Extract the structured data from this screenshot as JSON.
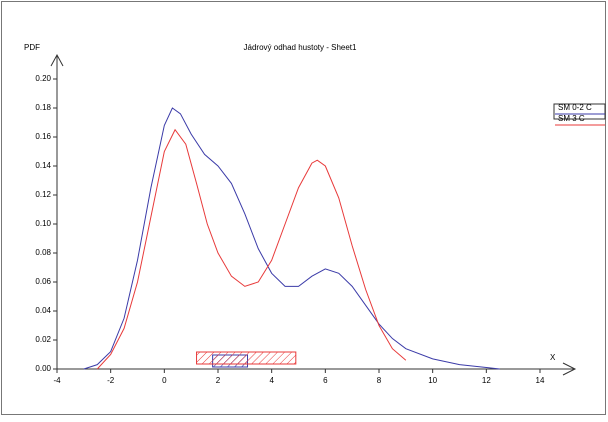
{
  "chart_data": {
    "type": "line",
    "title": "Jádrový odhad hustoty - Sheet1",
    "y_label": "PDF",
    "x_label": "X",
    "xlim": [
      -4,
      14
    ],
    "ylim": [
      0,
      0.2
    ],
    "xticks": [
      -4,
      -2,
      0,
      2,
      4,
      6,
      8,
      10,
      12,
      14
    ],
    "yticks": [
      {
        "value": 0,
        "label": "0.00"
      },
      {
        "value": 0.02,
        "label": "0.02"
      },
      {
        "value": 0.04,
        "label": "0.04"
      },
      {
        "value": 0.06,
        "label": "0.06"
      },
      {
        "value": 0.08,
        "label": "0.08"
      },
      {
        "value": 0.1,
        "label": "0.10"
      },
      {
        "value": 0.12,
        "label": "0.12"
      },
      {
        "value": 0.14,
        "label": "0.14"
      },
      {
        "value": 0.16,
        "label": "0.16"
      },
      {
        "value": 0.18,
        "label": "0.18"
      },
      {
        "value": 0.2,
        "label": "0.20"
      }
    ],
    "series": [
      {
        "name": "SM 0-2 C",
        "color": "#3b3ba8",
        "box": [
          1.8,
          3.1
        ],
        "x": [
          -3,
          -2.5,
          -2,
          -1.5,
          -1,
          -0.5,
          0,
          0.3,
          0.6,
          1,
          1.5,
          2,
          2.5,
          3,
          3.5,
          4,
          4.5,
          5,
          5.5,
          6,
          6.5,
          7,
          7.5,
          8,
          8.5,
          9,
          10,
          11,
          12,
          12.5
        ],
        "values": [
          0,
          0.003,
          0.012,
          0.035,
          0.075,
          0.125,
          0.168,
          0.18,
          0.176,
          0.162,
          0.148,
          0.14,
          0.128,
          0.107,
          0.083,
          0.066,
          0.057,
          0.057,
          0.064,
          0.069,
          0.066,
          0.057,
          0.044,
          0.031,
          0.021,
          0.014,
          0.007,
          0.003,
          0.001,
          0
        ]
      },
      {
        "name": "SM 3 C",
        "color": "#e83a3a",
        "box": [
          1.2,
          4.9
        ],
        "x": [
          -2.5,
          -2,
          -1.5,
          -1,
          -0.5,
          0,
          0.4,
          0.8,
          1.2,
          1.6,
          2,
          2.5,
          3,
          3.5,
          4,
          4.5,
          5,
          5.5,
          5.7,
          6,
          6.5,
          7,
          7.5,
          8,
          8.5,
          9
        ],
        "values": [
          0,
          0.01,
          0.028,
          0.06,
          0.105,
          0.15,
          0.165,
          0.155,
          0.128,
          0.1,
          0.08,
          0.064,
          0.057,
          0.06,
          0.075,
          0.1,
          0.125,
          0.142,
          0.144,
          0.14,
          0.118,
          0.085,
          0.055,
          0.03,
          0.014,
          0.006
        ]
      }
    ]
  }
}
